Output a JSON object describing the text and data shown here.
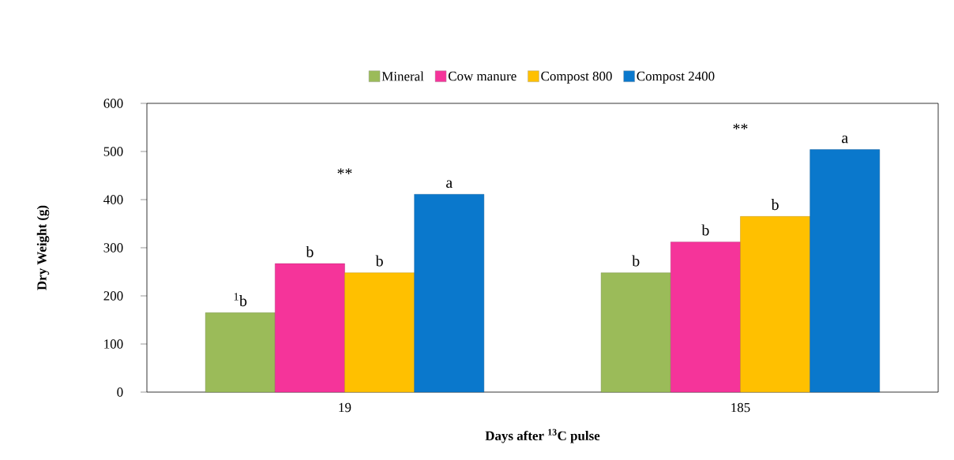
{
  "chart_data": {
    "type": "bar",
    "categories": [
      "19",
      "185"
    ],
    "xlabel": "Days after $^{13}$C pulse",
    "ylabel": "Dry  Weight (g)",
    "ylim": [
      0,
      600
    ],
    "yticks": [
      0,
      100,
      200,
      300,
      400,
      500,
      600
    ],
    "legend": "top",
    "series": [
      {
        "name": "Mineral",
        "color": "#9bbb59",
        "values": [
          165,
          248
        ]
      },
      {
        "name": "Cow manure",
        "color": "#f5349a",
        "values": [
          267,
          312
        ]
      },
      {
        "name": "Compost 800",
        "color": "#ffc000",
        "values": [
          248,
          365
        ]
      },
      {
        "name": "Compost 2400",
        "color": "#0a78cc",
        "values": [
          411,
          504
        ]
      }
    ],
    "annotations": [
      "$^{1}$b",
      "b",
      "b",
      "a",
      "b",
      "b",
      "b",
      "a",
      "**",
      "**"
    ]
  }
}
